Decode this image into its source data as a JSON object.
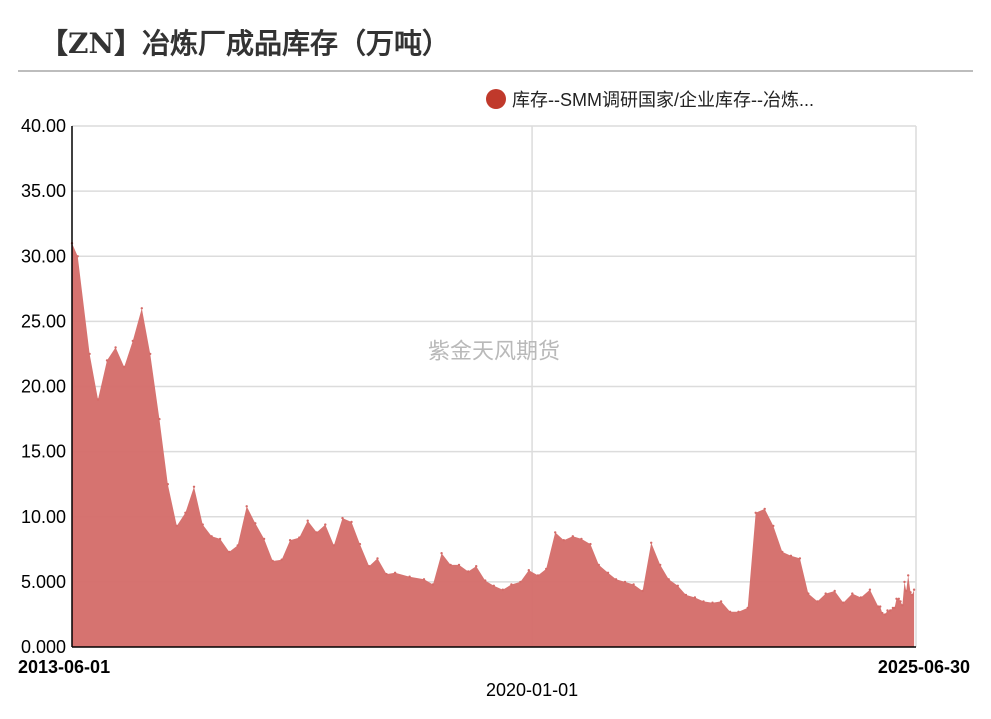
{
  "title": "【ZN】冶炼厂成品库存（万吨）",
  "watermark": "紫金天风期货",
  "chart_data": {
    "type": "area",
    "title": "【ZN】冶炼厂成品库存（万吨）",
    "legend": {
      "position": "top-right",
      "label": "库存--SMM调研国家/企业库存--冶炼..."
    },
    "grid": true,
    "colors": {
      "series": "#c0392b",
      "fill": "#d46b68",
      "grid": "#dcdcdc",
      "axis": "#000000"
    },
    "y_ticks": [
      "0.000",
      "5.000",
      "10.00",
      "15.00",
      "20.00",
      "25.00",
      "30.00",
      "35.00",
      "40.00"
    ],
    "ylim": [
      0,
      40
    ],
    "x_ticks": [
      {
        "label": "2013-06-01",
        "date": "2013-06-01",
        "bold": true
      },
      {
        "label": "2020-01-01",
        "date": "2020-01-01",
        "bold": false
      },
      {
        "label": "2025-06-30",
        "date": "2025-06-30",
        "bold": true
      }
    ],
    "xlim": [
      "2013-06-01",
      "2025-06-30"
    ],
    "series": [
      {
        "name": "库存--SMM调研国家/企业库存--冶炼...",
        "points": [
          [
            "2013-06-01",
            31.0
          ],
          [
            "2013-07-01",
            30.0
          ],
          [
            "2013-09-01",
            22.5
          ],
          [
            "2013-10-15",
            19.0
          ],
          [
            "2013-12-01",
            22.0
          ],
          [
            "2014-01-15",
            23.0
          ],
          [
            "2014-03-01",
            21.5
          ],
          [
            "2014-04-15",
            23.5
          ],
          [
            "2014-06-01",
            26.0
          ],
          [
            "2014-07-15",
            22.5
          ],
          [
            "2014-09-01",
            17.5
          ],
          [
            "2014-10-15",
            12.5
          ],
          [
            "2014-12-01",
            9.3
          ],
          [
            "2015-01-15",
            10.3
          ],
          [
            "2015-03-01",
            12.3
          ],
          [
            "2015-04-15",
            9.4
          ],
          [
            "2015-06-01",
            8.5
          ],
          [
            "2015-07-15",
            8.3
          ],
          [
            "2015-09-01",
            7.3
          ],
          [
            "2015-10-15",
            7.8
          ],
          [
            "2015-12-01",
            10.8
          ],
          [
            "2016-01-15",
            9.5
          ],
          [
            "2016-03-01",
            8.3
          ],
          [
            "2016-04-15",
            6.6
          ],
          [
            "2016-06-01",
            6.7
          ],
          [
            "2016-07-15",
            8.2
          ],
          [
            "2016-09-01",
            8.4
          ],
          [
            "2016-10-15",
            9.7
          ],
          [
            "2016-12-01",
            8.8
          ],
          [
            "2017-01-15",
            9.4
          ],
          [
            "2017-03-01",
            7.8
          ],
          [
            "2017-04-15",
            9.9
          ],
          [
            "2017-06-01",
            9.6
          ],
          [
            "2017-07-15",
            7.9
          ],
          [
            "2017-09-01",
            6.2
          ],
          [
            "2017-10-15",
            6.8
          ],
          [
            "2017-12-01",
            5.6
          ],
          [
            "2018-01-15",
            5.7
          ],
          [
            "2018-04-01",
            5.4
          ],
          [
            "2018-06-15",
            5.2
          ],
          [
            "2018-08-01",
            4.8
          ],
          [
            "2018-09-15",
            7.2
          ],
          [
            "2018-11-01",
            6.3
          ],
          [
            "2018-12-15",
            6.3
          ],
          [
            "2019-02-01",
            5.8
          ],
          [
            "2019-03-15",
            6.2
          ],
          [
            "2019-05-01",
            5.1
          ],
          [
            "2019-06-15",
            4.7
          ],
          [
            "2019-08-01",
            4.4
          ],
          [
            "2019-09-15",
            4.8
          ],
          [
            "2019-11-01",
            5.0
          ],
          [
            "2019-12-15",
            5.9
          ],
          [
            "2020-02-01",
            5.5
          ],
          [
            "2020-03-15",
            6.0
          ],
          [
            "2020-05-01",
            8.8
          ],
          [
            "2020-06-15",
            8.2
          ],
          [
            "2020-08-01",
            8.5
          ],
          [
            "2020-09-15",
            8.3
          ],
          [
            "2020-11-01",
            7.9
          ],
          [
            "2020-12-15",
            6.3
          ],
          [
            "2021-02-01",
            5.7
          ],
          [
            "2021-03-15",
            5.2
          ],
          [
            "2021-05-01",
            5.0
          ],
          [
            "2021-06-15",
            4.8
          ],
          [
            "2021-08-01",
            4.3
          ],
          [
            "2021-09-15",
            8.0
          ],
          [
            "2021-11-01",
            6.3
          ],
          [
            "2021-12-15",
            5.2
          ],
          [
            "2022-02-01",
            4.7
          ],
          [
            "2022-03-15",
            4.0
          ],
          [
            "2022-05-01",
            3.8
          ],
          [
            "2022-06-15",
            3.5
          ],
          [
            "2022-08-01",
            3.4
          ],
          [
            "2022-09-15",
            3.5
          ],
          [
            "2022-11-01",
            2.7
          ],
          [
            "2022-12-15",
            2.7
          ],
          [
            "2023-02-01",
            3.0
          ],
          [
            "2023-03-15",
            10.3
          ],
          [
            "2023-05-01",
            10.6
          ],
          [
            "2023-06-15",
            9.3
          ],
          [
            "2023-08-01",
            7.3
          ],
          [
            "2023-09-15",
            7.0
          ],
          [
            "2023-11-01",
            6.8
          ],
          [
            "2023-12-15",
            4.1
          ],
          [
            "2024-02-01",
            3.5
          ],
          [
            "2024-03-15",
            4.1
          ],
          [
            "2024-05-01",
            4.3
          ],
          [
            "2024-06-15",
            3.4
          ],
          [
            "2024-08-01",
            4.1
          ],
          [
            "2024-09-15",
            3.8
          ],
          [
            "2024-11-01",
            4.4
          ],
          [
            "2024-12-15",
            3.1
          ],
          [
            "2024-12-25",
            3.1
          ],
          [
            "2025-01-05",
            2.6
          ],
          [
            "2025-01-20",
            2.5
          ],
          [
            "2025-02-01",
            2.8
          ],
          [
            "2025-02-15",
            2.8
          ],
          [
            "2025-03-01",
            3.0
          ],
          [
            "2025-03-10",
            3.0
          ],
          [
            "2025-03-20",
            3.7
          ],
          [
            "2025-04-01",
            3.7
          ],
          [
            "2025-04-10",
            3.5
          ],
          [
            "2025-04-20",
            3.2
          ],
          [
            "2025-05-01",
            5.0
          ],
          [
            "2025-05-10",
            4.3
          ],
          [
            "2025-05-20",
            5.5
          ],
          [
            "2025-06-01",
            4.2
          ],
          [
            "2025-06-10",
            4.0
          ],
          [
            "2025-06-20",
            4.4
          ]
        ]
      }
    ]
  }
}
